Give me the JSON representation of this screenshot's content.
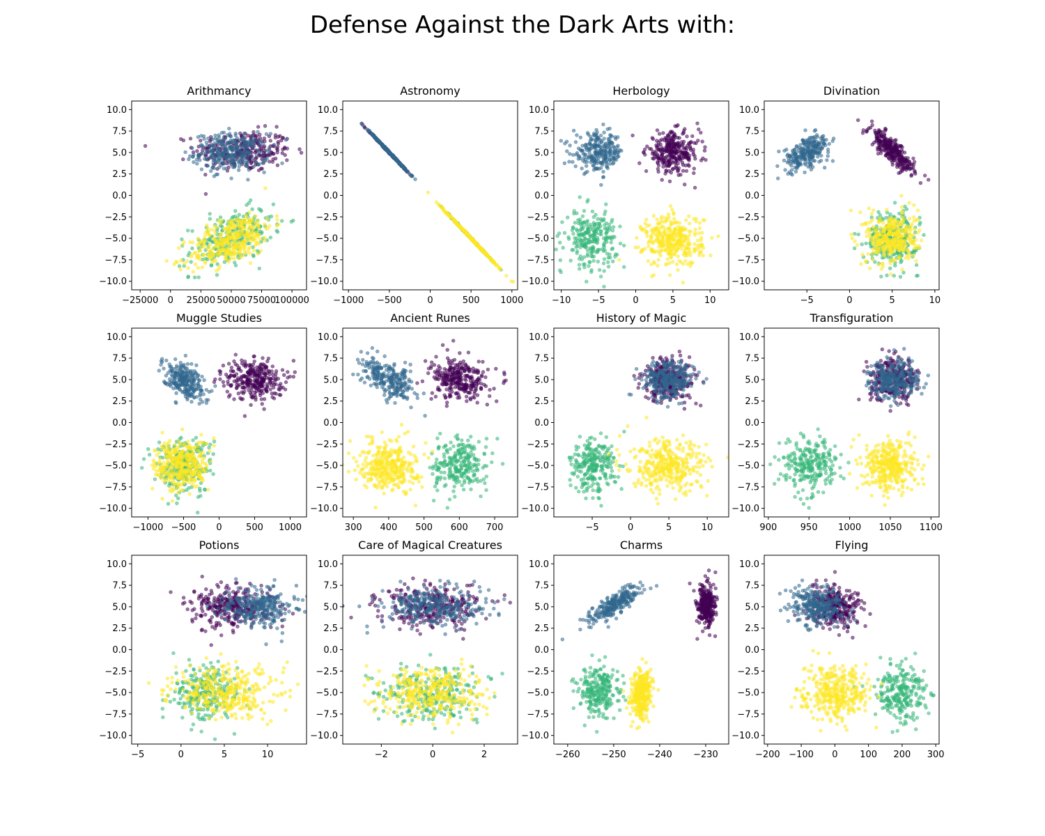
{
  "figure": {
    "title": "Defense Against the Dark Arts with:"
  },
  "chart_data": [
    {
      "type": "scatter",
      "title": "Arithmancy",
      "xlabel": "",
      "ylabel": "Defense Against the Dark Arts",
      "xlim": [
        -32000,
        112000
      ],
      "ylim": [
        -11,
        11
      ],
      "xticks": [
        -25000,
        0,
        25000,
        50000,
        75000,
        100000
      ],
      "xtick_labels": [
        "−25000",
        "0",
        "25000",
        "50000",
        "75000",
        "100000"
      ],
      "yticks": [
        -10,
        -7.5,
        -5,
        -2.5,
        0,
        2.5,
        5,
        7.5,
        10
      ],
      "ytick_labels": [
        "−10.0",
        "−7.5",
        "−5.0",
        "−2.5",
        "0.0",
        "2.5",
        "5.0",
        "7.5",
        "10.0"
      ],
      "clusters": [
        {
          "color": "#440154",
          "cx": 60000,
          "cy": 5.2,
          "sx": 20000,
          "sy": 1.2,
          "n": 280,
          "rho": 0
        },
        {
          "color": "#31688e",
          "cx": 50000,
          "cy": 5.0,
          "sx": 15000,
          "sy": 1.1,
          "n": 280,
          "rho": 0
        },
        {
          "color": "#35b779",
          "cx": 50000,
          "cy": -5.0,
          "sx": 17000,
          "sy": 1.7,
          "n": 250,
          "rho": 0.45
        },
        {
          "color": "#fde725",
          "cx": 50000,
          "cy": -5.2,
          "sx": 17000,
          "sy": 1.6,
          "n": 350,
          "rho": 0.55
        }
      ]
    },
    {
      "type": "scatter",
      "title": "Astronomy",
      "xlabel": "",
      "ylabel": "",
      "xlim": [
        -1070,
        1070
      ],
      "ylim": [
        -11,
        11
      ],
      "xticks": [
        -1000,
        -500,
        0,
        500,
        1000
      ],
      "xtick_labels": [
        "−1000",
        "−500",
        "0",
        "500",
        "1000"
      ],
      "yticks": [
        -10,
        -7.5,
        -5,
        -2.5,
        0,
        2.5,
        5,
        7.5,
        10
      ],
      "ytick_labels": [
        "−10.0",
        "−7.5",
        "−5.0",
        "−2.5",
        "0.0",
        "2.5",
        "5.0",
        "7.5",
        "10.0"
      ],
      "line_slope": -0.01,
      "clusters": [
        {
          "color": "#440154",
          "cx": -520,
          "cy": 0,
          "sx": 120,
          "sy": 0,
          "n": 200,
          "rho": 0
        },
        {
          "color": "#31688e",
          "cx": -500,
          "cy": 0,
          "sx": 110,
          "sy": 0,
          "n": 250,
          "rho": 0
        },
        {
          "color": "#35b779",
          "cx": 500,
          "cy": 0,
          "sx": 140,
          "sy": 0,
          "n": 200,
          "rho": 0
        },
        {
          "color": "#fde725",
          "cx": 500,
          "cy": 0,
          "sx": 170,
          "sy": 0,
          "n": 330,
          "rho": 0
        }
      ]
    },
    {
      "type": "scatter",
      "title": "Herbology",
      "xlabel": "",
      "ylabel": "",
      "xlim": [
        -11,
        12.5
      ],
      "ylim": [
        -11,
        11
      ],
      "xticks": [
        -10,
        -5,
        0,
        5,
        10
      ],
      "xtick_labels": [
        "−10",
        "−5",
        "0",
        "5",
        "10"
      ],
      "yticks": [
        -10,
        -7.5,
        -5,
        -2.5,
        0,
        2.5,
        5,
        7.5,
        10
      ],
      "ytick_labels": [
        "−10.0",
        "−7.5",
        "−5.0",
        "−2.5",
        "0.0",
        "2.5",
        "5.0",
        "7.5",
        "10.0"
      ],
      "clusters": [
        {
          "color": "#440154",
          "cx": 5,
          "cy": 5.0,
          "sx": 1.8,
          "sy": 1.2,
          "n": 300,
          "rho": 0
        },
        {
          "color": "#31688e",
          "cx": -5,
          "cy": 5.0,
          "sx": 1.7,
          "sy": 1.1,
          "n": 250,
          "rho": 0
        },
        {
          "color": "#35b779",
          "cx": -6,
          "cy": -5.0,
          "sx": 1.7,
          "sy": 1.6,
          "n": 250,
          "rho": 0
        },
        {
          "color": "#fde725",
          "cx": 5,
          "cy": -5.3,
          "sx": 2.0,
          "sy": 1.5,
          "n": 350,
          "rho": 0
        }
      ]
    },
    {
      "type": "scatter",
      "title": "Divination",
      "xlabel": "",
      "ylabel": "",
      "xlim": [
        -10,
        10.5
      ],
      "ylim": [
        -11,
        11
      ],
      "xticks": [
        -5,
        0,
        5,
        10
      ],
      "xtick_labels": [
        "−5",
        "0",
        "5",
        "10"
      ],
      "yticks": [
        -10,
        -7.5,
        -5,
        -2.5,
        0,
        2.5,
        5,
        7.5,
        10
      ],
      "ytick_labels": [
        "−10.0",
        "−7.5",
        "−5.0",
        "−2.5",
        "0.0",
        "2.5",
        "5.0",
        "7.5",
        "10.0"
      ],
      "clusters": [
        {
          "color": "#440154",
          "cx": 5,
          "cy": 5.2,
          "sx": 1.3,
          "sy": 1.3,
          "n": 300,
          "rho": -0.85
        },
        {
          "color": "#31688e",
          "cx": -5,
          "cy": 5.0,
          "sx": 1.3,
          "sy": 1.0,
          "n": 250,
          "rho": 0.5
        },
        {
          "color": "#35b779",
          "cx": 5,
          "cy": -5.0,
          "sx": 1.5,
          "sy": 1.6,
          "n": 250,
          "rho": 0
        },
        {
          "color": "#fde725",
          "cx": 5,
          "cy": -5.0,
          "sx": 1.5,
          "sy": 1.5,
          "n": 350,
          "rho": 0
        }
      ]
    },
    {
      "type": "scatter",
      "title": "Muggle Studies",
      "xlabel": "",
      "ylabel": "",
      "xlim": [
        -1230,
        1230
      ],
      "ylim": [
        -11,
        11
      ],
      "xticks": [
        -1000,
        -500,
        0,
        500,
        1000
      ],
      "xtick_labels": [
        "−1000",
        "−500",
        "0",
        "500",
        "1000"
      ],
      "yticks": [
        -10,
        -7.5,
        -5,
        -2.5,
        0,
        2.5,
        5,
        7.5,
        10
      ],
      "ytick_labels": [
        "−10.0",
        "−7.5",
        "−5.0",
        "−2.5",
        "0.0",
        "2.5",
        "5.0",
        "7.5",
        "10.0"
      ],
      "clusters": [
        {
          "color": "#440154",
          "cx": 500,
          "cy": 5.0,
          "sx": 200,
          "sy": 1.2,
          "n": 300,
          "rho": 0
        },
        {
          "color": "#31688e",
          "cx": -500,
          "cy": 5.0,
          "sx": 150,
          "sy": 1.1,
          "n": 250,
          "rho": -0.45
        },
        {
          "color": "#35b779",
          "cx": -500,
          "cy": -5.0,
          "sx": 200,
          "sy": 1.6,
          "n": 250,
          "rho": 0
        },
        {
          "color": "#fde725",
          "cx": -520,
          "cy": -5.0,
          "sx": 190,
          "sy": 1.5,
          "n": 350,
          "rho": 0
        }
      ]
    },
    {
      "type": "scatter",
      "title": "Ancient Runes",
      "xlabel": "",
      "ylabel": "",
      "xlim": [
        270,
        765
      ],
      "ylim": [
        -11,
        11
      ],
      "xticks": [
        300,
        400,
        500,
        600,
        700
      ],
      "xtick_labels": [
        "300",
        "400",
        "500",
        "600",
        "700"
      ],
      "yticks": [
        -10,
        -7.5,
        -5,
        -2.5,
        0,
        2.5,
        5,
        7.5,
        10
      ],
      "ytick_labels": [
        "−10.0",
        "−7.5",
        "−5.0",
        "−2.5",
        "0.0",
        "2.5",
        "5.0",
        "7.5",
        "10.0"
      ],
      "clusters": [
        {
          "color": "#440154",
          "cx": 600,
          "cy": 5.0,
          "sx": 40,
          "sy": 1.2,
          "n": 300,
          "rho": 0
        },
        {
          "color": "#31688e",
          "cx": 400,
          "cy": 5.0,
          "sx": 38,
          "sy": 1.1,
          "n": 250,
          "rho": -0.5
        },
        {
          "color": "#35b779",
          "cx": 600,
          "cy": -5.0,
          "sx": 38,
          "sy": 1.6,
          "n": 250,
          "rho": 0
        },
        {
          "color": "#fde725",
          "cx": 400,
          "cy": -5.0,
          "sx": 40,
          "sy": 1.5,
          "n": 350,
          "rho": 0
        }
      ]
    },
    {
      "type": "scatter",
      "title": "History of Magic",
      "xlabel": "",
      "ylabel": "",
      "xlim": [
        -10,
        12.8
      ],
      "ylim": [
        -11,
        11
      ],
      "xticks": [
        -5,
        0,
        5,
        10
      ],
      "xtick_labels": [
        "−5",
        "0",
        "5",
        "10"
      ],
      "yticks": [
        -10,
        -7.5,
        -5,
        -2.5,
        0,
        2.5,
        5,
        7.5,
        10
      ],
      "ytick_labels": [
        "−10.0",
        "−7.5",
        "−5.0",
        "−2.5",
        "0.0",
        "2.5",
        "5.0",
        "7.5",
        "10.0"
      ],
      "clusters": [
        {
          "color": "#440154",
          "cx": 5,
          "cy": 5.0,
          "sx": 1.7,
          "sy": 1.2,
          "n": 300,
          "rho": 0
        },
        {
          "color": "#31688e",
          "cx": 5,
          "cy": 5.0,
          "sx": 1.6,
          "sy": 1.1,
          "n": 280,
          "rho": 0
        },
        {
          "color": "#35b779",
          "cx": -5,
          "cy": -5.0,
          "sx": 1.5,
          "sy": 1.6,
          "n": 250,
          "rho": 0
        },
        {
          "color": "#fde725",
          "cx": 5,
          "cy": -5.2,
          "sx": 2.5,
          "sy": 1.5,
          "n": 350,
          "rho": 0
        }
      ]
    },
    {
      "type": "scatter",
      "title": "Transfiguration",
      "xlabel": "",
      "ylabel": "",
      "xlim": [
        895,
        1110
      ],
      "ylim": [
        -11,
        11
      ],
      "xticks": [
        900,
        950,
        1000,
        1050,
        1100
      ],
      "xtick_labels": [
        "900",
        "950",
        "1000",
        "1050",
        "1100"
      ],
      "yticks": [
        -10,
        -7.5,
        -5,
        -2.5,
        0,
        2.5,
        5,
        7.5,
        10
      ],
      "ytick_labels": [
        "−10.0",
        "−7.5",
        "−5.0",
        "−2.5",
        "0.0",
        "2.5",
        "5.0",
        "7.5",
        "10.0"
      ],
      "clusters": [
        {
          "color": "#440154",
          "cx": 1055,
          "cy": 5.0,
          "sx": 15,
          "sy": 1.2,
          "n": 300,
          "rho": 0
        },
        {
          "color": "#31688e",
          "cx": 1055,
          "cy": 5.0,
          "sx": 15,
          "sy": 1.1,
          "n": 280,
          "rho": 0
        },
        {
          "color": "#35b779",
          "cx": 950,
          "cy": -5.0,
          "sx": 17,
          "sy": 1.6,
          "n": 250,
          "rho": 0
        },
        {
          "color": "#fde725",
          "cx": 1050,
          "cy": -5.0,
          "sx": 16,
          "sy": 1.5,
          "n": 350,
          "rho": 0
        }
      ]
    },
    {
      "type": "scatter",
      "title": "Potions",
      "xlabel": "",
      "ylabel": "",
      "xlim": [
        -5.7,
        14.5
      ],
      "ylim": [
        -11,
        11
      ],
      "xticks": [
        -5,
        0,
        5,
        10
      ],
      "xtick_labels": [
        "−5",
        "0",
        "5",
        "10"
      ],
      "yticks": [
        -10,
        -7.5,
        -5,
        -2.5,
        0,
        2.5,
        5,
        7.5,
        10
      ],
      "ytick_labels": [
        "−10.0",
        "−7.5",
        "−5.0",
        "−2.5",
        "0.0",
        "2.5",
        "5.0",
        "7.5",
        "10.0"
      ],
      "clusters": [
        {
          "color": "#440154",
          "cx": 6,
          "cy": 5.0,
          "sx": 2.3,
          "sy": 1.2,
          "n": 300,
          "rho": 0
        },
        {
          "color": "#31688e",
          "cx": 9,
          "cy": 5.0,
          "sx": 2.0,
          "sy": 1.1,
          "n": 280,
          "rho": 0
        },
        {
          "color": "#35b779",
          "cx": 3,
          "cy": -5.0,
          "sx": 2.0,
          "sy": 1.6,
          "n": 250,
          "rho": 0
        },
        {
          "color": "#fde725",
          "cx": 5,
          "cy": -5.0,
          "sx": 3.0,
          "sy": 1.5,
          "n": 350,
          "rho": 0
        }
      ]
    },
    {
      "type": "scatter",
      "title": "Care of Magical Creatures",
      "xlabel": "",
      "ylabel": "",
      "xlim": [
        -3.5,
        3.3
      ],
      "ylim": [
        -11,
        11
      ],
      "xticks": [
        -2,
        0,
        2
      ],
      "xtick_labels": [
        "−2",
        "0",
        "2"
      ],
      "yticks": [
        -10,
        -7.5,
        -5,
        -2.5,
        0,
        2.5,
        5,
        7.5,
        10
      ],
      "ytick_labels": [
        "−10.0",
        "−7.5",
        "−5.0",
        "−2.5",
        "0.0",
        "2.5",
        "5.0",
        "7.5",
        "10.0"
      ],
      "clusters": [
        {
          "color": "#440154",
          "cx": 0,
          "cy": 5.0,
          "sx": 1.0,
          "sy": 1.2,
          "n": 300,
          "rho": 0
        },
        {
          "color": "#31688e",
          "cx": 0,
          "cy": 5.0,
          "sx": 1.0,
          "sy": 1.1,
          "n": 280,
          "rho": 0
        },
        {
          "color": "#35b779",
          "cx": 0,
          "cy": -5.0,
          "sx": 1.0,
          "sy": 1.6,
          "n": 250,
          "rho": 0
        },
        {
          "color": "#fde725",
          "cx": 0,
          "cy": -5.0,
          "sx": 1.0,
          "sy": 1.5,
          "n": 350,
          "rho": 0
        }
      ]
    },
    {
      "type": "scatter",
      "title": "Charms",
      "xlabel": "",
      "ylabel": "",
      "xlim": [
        -263,
        -225
      ],
      "ylim": [
        -11,
        11
      ],
      "xticks": [
        -260,
        -250,
        -240,
        -230
      ],
      "xtick_labels": [
        "−260",
        "−250",
        "−240",
        "−230"
      ],
      "yticks": [
        -10,
        -7.5,
        -5,
        -2.5,
        0,
        2.5,
        5,
        7.5,
        10
      ],
      "ytick_labels": [
        "−10.0",
        "−7.5",
        "−5.0",
        "−2.5",
        "0.0",
        "2.5",
        "5.0",
        "7.5",
        "10.0"
      ],
      "clusters": [
        {
          "color": "#440154",
          "cx": -230,
          "cy": 5.0,
          "sx": 1.0,
          "sy": 1.3,
          "n": 300,
          "rho": 0
        },
        {
          "color": "#31688e",
          "cx": -250,
          "cy": 5.2,
          "sx": 3.0,
          "sy": 1.2,
          "n": 250,
          "rho": 0.85
        },
        {
          "color": "#35b779",
          "cx": -253,
          "cy": -5.0,
          "sx": 2.3,
          "sy": 1.5,
          "n": 250,
          "rho": 0
        },
        {
          "color": "#fde725",
          "cx": -244,
          "cy": -5.2,
          "sx": 1.1,
          "sy": 1.4,
          "n": 350,
          "rho": 0.2
        }
      ]
    },
    {
      "type": "scatter",
      "title": "Flying",
      "xlabel": "",
      "ylabel": "",
      "xlim": [
        -210,
        310
      ],
      "ylim": [
        -11,
        11
      ],
      "xticks": [
        -200,
        -100,
        0,
        100,
        200,
        300
      ],
      "xtick_labels": [
        "−200",
        "−100",
        "0",
        "100",
        "200",
        "300"
      ],
      "yticks": [
        -10,
        -7.5,
        -5,
        -2.5,
        0,
        2.5,
        5,
        7.5,
        10
      ],
      "ytick_labels": [
        "−10.0",
        "−7.5",
        "−5.0",
        "−2.5",
        "0.0",
        "2.5",
        "5.0",
        "7.5",
        "10.0"
      ],
      "clusters": [
        {
          "color": "#440154",
          "cx": 0,
          "cy": 5.0,
          "sx": 40,
          "sy": 1.2,
          "n": 300,
          "rho": 0
        },
        {
          "color": "#31688e",
          "cx": -50,
          "cy": 5.0,
          "sx": 40,
          "sy": 1.1,
          "n": 280,
          "rho": 0
        },
        {
          "color": "#35b779",
          "cx": 200,
          "cy": -5.0,
          "sx": 40,
          "sy": 1.6,
          "n": 250,
          "rho": 0
        },
        {
          "color": "#fde725",
          "cx": 0,
          "cy": -5.0,
          "sx": 50,
          "sy": 1.5,
          "n": 350,
          "rho": 0
        }
      ]
    }
  ]
}
